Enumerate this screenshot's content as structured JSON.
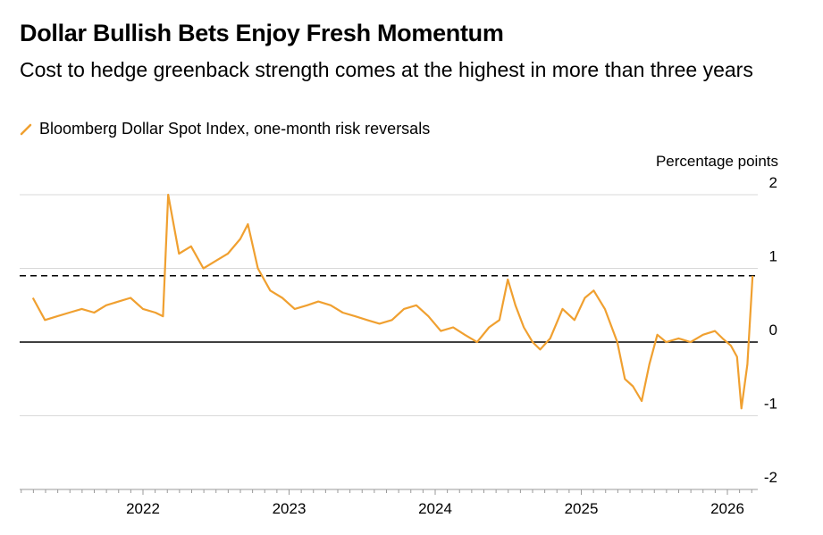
{
  "title": "Dollar Bullish Bets Enjoy Fresh Momentum",
  "subtitle": "Cost to hedge greenback strength comes at the highest in more than three years",
  "colors": {
    "series": "#f0a030",
    "threshold": "#000000",
    "zero": "#000000",
    "grid": "#d9d9d9"
  },
  "chart_data": {
    "type": "line",
    "ylabel": "Percentage points",
    "ylim": [
      -2,
      2
    ],
    "yticks": [
      2,
      1,
      0,
      -1,
      -2
    ],
    "xticks": [
      "2022",
      "2023",
      "2024",
      "2025",
      "2026"
    ],
    "reference_lines": [
      {
        "y": 0.9,
        "style": "dashed"
      },
      {
        "y": 0,
        "style": "solid"
      }
    ],
    "series": [
      {
        "name": "Bloomberg Dollar Spot Index, one-month risk reversals",
        "x": [
          "2021-04-01",
          "2021-05-01",
          "2021-06-01",
          "2021-07-01",
          "2021-08-01",
          "2021-09-01",
          "2021-10-01",
          "2021-11-01",
          "2021-12-01",
          "2022-01-01",
          "2022-02-01",
          "2022-02-20",
          "2022-03-05",
          "2022-04-01",
          "2022-05-01",
          "2022-06-01",
          "2022-07-01",
          "2022-08-01",
          "2022-09-01",
          "2022-09-20",
          "2022-10-15",
          "2022-11-15",
          "2022-12-15",
          "2023-01-15",
          "2023-02-15",
          "2023-03-15",
          "2023-04-15",
          "2023-05-15",
          "2023-06-15",
          "2023-07-15",
          "2023-08-15",
          "2023-09-15",
          "2023-10-15",
          "2023-11-15",
          "2023-12-15",
          "2024-01-15",
          "2024-02-15",
          "2024-03-15",
          "2024-04-15",
          "2024-05-15",
          "2024-06-10",
          "2024-07-01",
          "2024-07-20",
          "2024-08-10",
          "2024-09-01",
          "2024-09-20",
          "2024-10-15",
          "2024-11-15",
          "2024-12-15",
          "2025-01-10",
          "2025-02-01",
          "2025-03-01",
          "2025-04-01",
          "2025-04-20",
          "2025-05-10",
          "2025-06-01",
          "2025-06-20",
          "2025-07-10",
          "2025-08-01",
          "2025-09-01",
          "2025-10-01",
          "2025-11-01",
          "2025-12-01",
          "2025-12-20",
          "2026-01-10",
          "2026-01-25",
          "2026-02-05",
          "2026-02-20",
          "2026-03-05"
        ],
        "y": [
          0.6,
          0.3,
          0.35,
          0.4,
          0.45,
          0.4,
          0.5,
          0.55,
          0.6,
          0.45,
          0.4,
          0.35,
          2.0,
          1.2,
          1.3,
          1.0,
          1.1,
          1.2,
          1.4,
          1.6,
          1.0,
          0.7,
          0.6,
          0.45,
          0.5,
          0.55,
          0.5,
          0.4,
          0.35,
          0.3,
          0.25,
          0.3,
          0.45,
          0.5,
          0.35,
          0.15,
          0.2,
          0.1,
          0.0,
          0.2,
          0.3,
          0.85,
          0.5,
          0.2,
          0.0,
          -0.1,
          0.05,
          0.45,
          0.3,
          0.6,
          0.7,
          0.45,
          0.0,
          -0.5,
          -0.6,
          -0.8,
          -0.3,
          0.1,
          0.0,
          0.05,
          0.0,
          0.1,
          0.15,
          0.05,
          -0.05,
          -0.2,
          -0.9,
          -0.3,
          0.9
        ]
      }
    ]
  }
}
